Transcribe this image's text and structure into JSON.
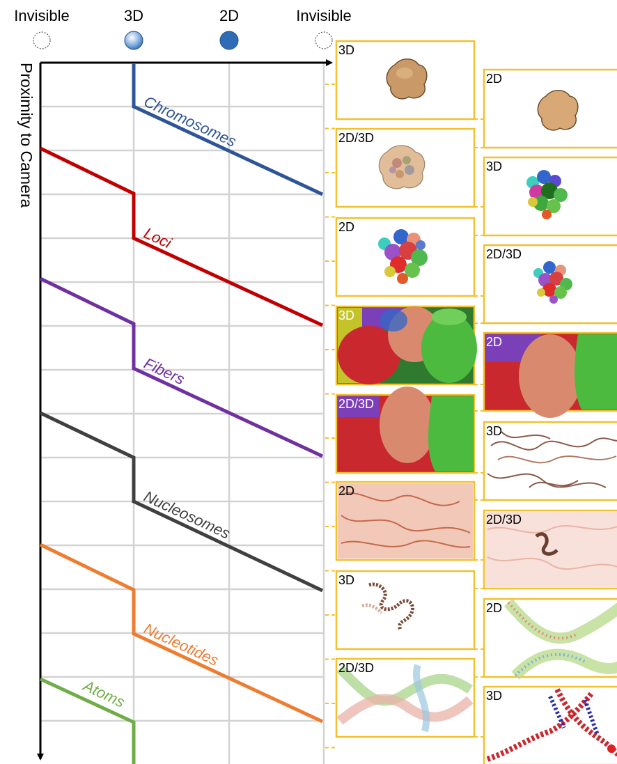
{
  "header": {
    "columns": [
      {
        "label": "Invisible"
      },
      {
        "label": "3D"
      },
      {
        "label": "2D"
      },
      {
        "label": "Invisible"
      }
    ]
  },
  "axis_label": "Proximity to Camera",
  "colors": {
    "chromosomes": "#2e5597",
    "loci": "#c00000",
    "fibers": "#7030a0",
    "nucleosomes": "#404040",
    "nucleotides": "#ed7d31",
    "atoms": "#70ad47",
    "panel_border": "#f2c12e",
    "grid": "#d3d3d3"
  },
  "levels": [
    {
      "name": "Chromosomes",
      "color": "#2e5597"
    },
    {
      "name": "Loci",
      "color": "#c00000"
    },
    {
      "name": "Fibers",
      "color": "#7030a0"
    },
    {
      "name": "Nucleosomes",
      "color": "#404040"
    },
    {
      "name": "Nucleotides",
      "color": "#ed7d31"
    },
    {
      "name": "Atoms",
      "color": "#70ad47"
    }
  ],
  "panels_left": [
    {
      "label": "3D"
    },
    {
      "label": "2D/3D"
    },
    {
      "label": "2D"
    },
    {
      "label": "3D"
    },
    {
      "label": "2D/3D"
    },
    {
      "label": "2D"
    },
    {
      "label": "3D"
    },
    {
      "label": "2D/3D"
    }
  ],
  "panels_right": [
    {
      "label": "2D"
    },
    {
      "label": "3D"
    },
    {
      "label": "2D/3D"
    },
    {
      "label": "2D"
    },
    {
      "label": "3D"
    },
    {
      "label": "2D/3D"
    },
    {
      "label": "2D"
    },
    {
      "label": "3D"
    }
  ]
}
